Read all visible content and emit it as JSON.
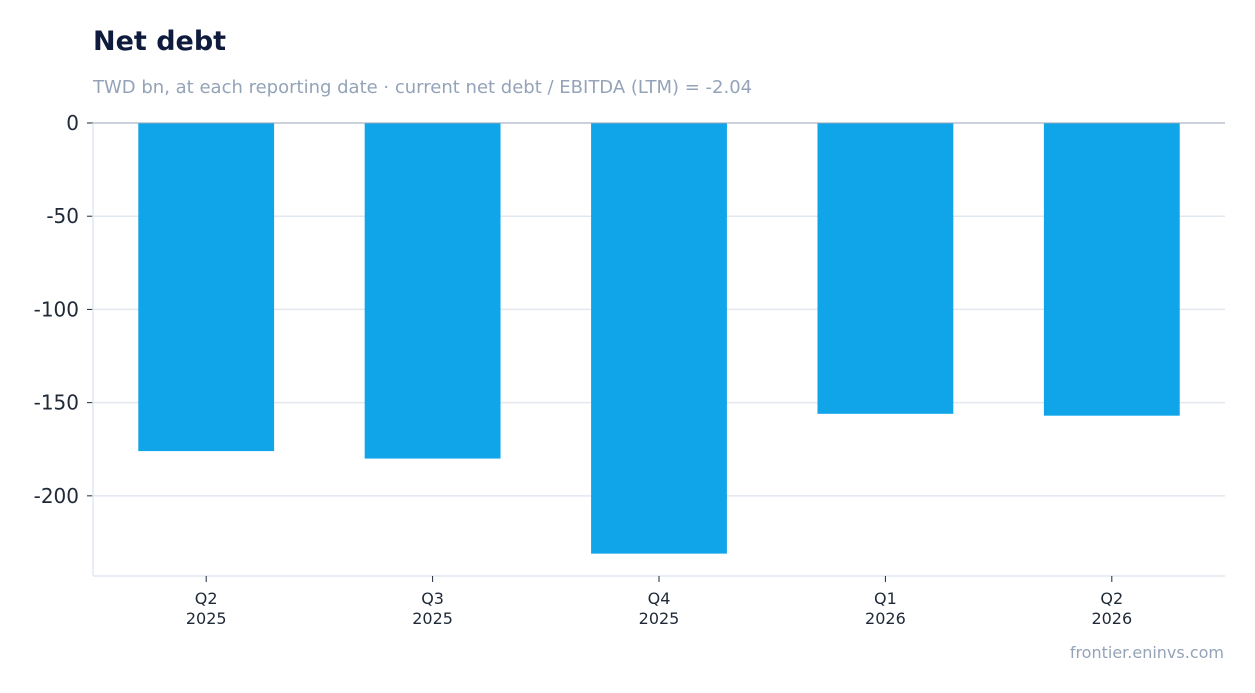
{
  "header": {
    "title": "Net debt",
    "subtitle": "TWD bn, at each reporting date · current net debt / EBITDA (LTM) = -2.04"
  },
  "footer": {
    "source": "frontier.eninvs.com"
  },
  "colors": {
    "bar": "#10a5e8",
    "grid": "#e2e8f0",
    "axis": "#94a3b8",
    "title": "#0f1b3d",
    "muted": "#94a3b8"
  },
  "chart_data": {
    "type": "bar",
    "title": "Net debt",
    "subtitle": "TWD bn, at each reporting date · current net debt / EBITDA (LTM) = -2.04",
    "categories": [
      [
        "Q2",
        "2025"
      ],
      [
        "Q3",
        "2025"
      ],
      [
        "Q4",
        "2025"
      ],
      [
        "Q1",
        "2026"
      ],
      [
        "Q2",
        "2026"
      ]
    ],
    "values": [
      -176,
      -180,
      -231,
      -156,
      -157
    ],
    "ylim": [
      -243,
      0
    ],
    "yticks": [
      0,
      -50,
      -100,
      -150,
      -200
    ],
    "ytick_labels": [
      "0",
      "-50",
      "-100",
      "-150",
      "-200"
    ],
    "grid": true,
    "legend": "none"
  }
}
